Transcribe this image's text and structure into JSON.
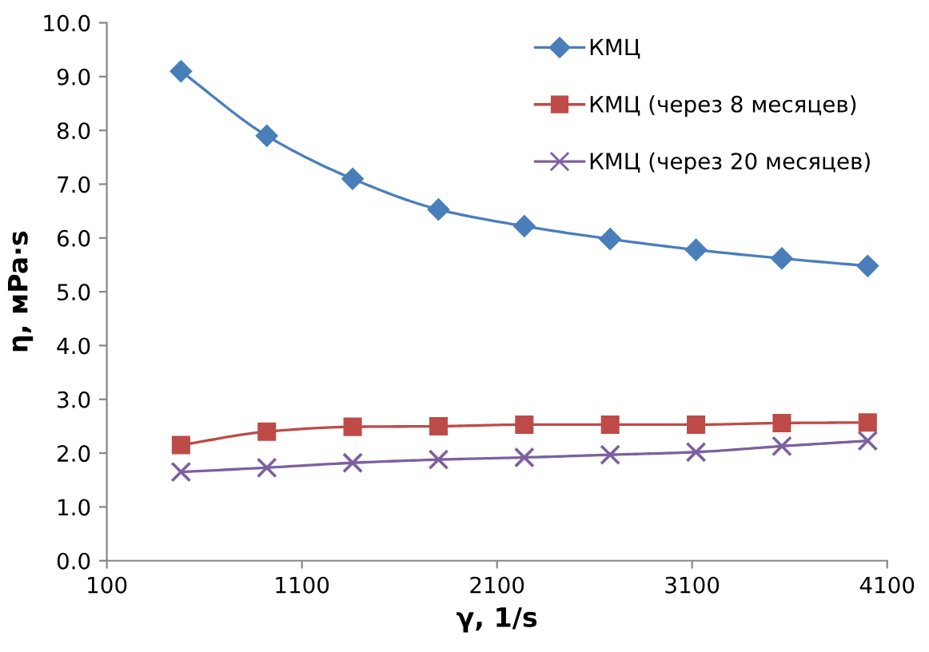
{
  "chart_data": {
    "type": "line",
    "xlabel": "γ, 1/s",
    "ylabel": "η, мPa·s",
    "x": [
      480,
      920,
      1360,
      1800,
      2240,
      2680,
      3120,
      3560,
      4000
    ],
    "series": [
      {
        "name": "КМЦ",
        "color": "#4a7ebb",
        "marker": "diamond",
        "values": [
          9.1,
          7.9,
          7.1,
          6.53,
          6.22,
          5.98,
          5.78,
          5.62,
          5.48
        ]
      },
      {
        "name": "КМЦ (через 8 месяцев)",
        "color": "#be4b48",
        "marker": "square",
        "values": [
          2.15,
          2.4,
          2.49,
          2.5,
          2.53,
          2.53,
          2.53,
          2.56,
          2.57
        ]
      },
      {
        "name": "КМЦ (через 20 месяцев)",
        "color": "#7d60a0",
        "marker": "cross",
        "values": [
          1.65,
          1.73,
          1.82,
          1.88,
          1.92,
          1.97,
          2.02,
          2.13,
          2.23
        ]
      }
    ],
    "xlim": [
      100,
      4100
    ],
    "xticks": [
      100,
      1100,
      2100,
      3100,
      4100
    ],
    "ylim": [
      0,
      10
    ],
    "yticks": [
      {
        "value": 0,
        "label": "0.0"
      },
      {
        "value": 1,
        "label": "1.0"
      },
      {
        "value": 2,
        "label": "2.0"
      },
      {
        "value": 3,
        "label": "3.0"
      },
      {
        "value": 4,
        "label": "4.0"
      },
      {
        "value": 5,
        "label": "5.0"
      },
      {
        "value": 6,
        "label": "6.0"
      },
      {
        "value": 7,
        "label": "7.0"
      },
      {
        "value": 8,
        "label": "8.0"
      },
      {
        "value": 9,
        "label": "9.0"
      },
      {
        "value": 10,
        "label": "10.0"
      }
    ],
    "grid": false,
    "legend": "top right"
  }
}
